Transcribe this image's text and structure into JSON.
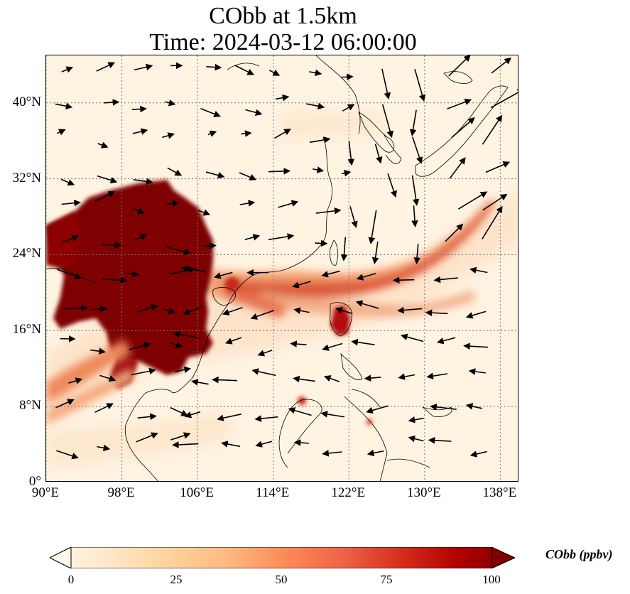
{
  "title": "CObb at 1.5km",
  "subtitle": "Time: 2024-03-12 06:00:00",
  "map": {
    "extent": {
      "lon_min": 90,
      "lon_max": 140,
      "lat_min": 0,
      "lat_max": 45
    },
    "gridlines": "dotted grey",
    "lon_ticks": [
      {
        "value": 90,
        "label": "90°E"
      },
      {
        "value": 98,
        "label": "98°E"
      },
      {
        "value": 106,
        "label": "106°E"
      },
      {
        "value": 114,
        "label": "114°E"
      },
      {
        "value": 122,
        "label": "122°E"
      },
      {
        "value": 130,
        "label": "130°E"
      },
      {
        "value": 138,
        "label": "138°E"
      }
    ],
    "lat_ticks": [
      {
        "value": 0,
        "label": "0°"
      },
      {
        "value": 8,
        "label": "8°N"
      },
      {
        "value": 16,
        "label": "16°N"
      },
      {
        "value": 24,
        "label": "24°N"
      },
      {
        "value": 32,
        "label": "32°N"
      },
      {
        "value": 40,
        "label": "40°N"
      }
    ],
    "plume_regions": [
      {
        "name": "Indochina / Myanmar core",
        "lon": [
          92,
          108
        ],
        "lat": [
          12,
          31
        ],
        "level": 100
      },
      {
        "name": "Transport band east across South China Sea",
        "lon": [
          108,
          136
        ],
        "lat": [
          16,
          30
        ],
        "level": 60
      },
      {
        "name": "Luzon",
        "lon": [
          120,
          123
        ],
        "lat": [
          15,
          18
        ],
        "level": 90
      }
    ],
    "wind_field": "black arrows (horizontal wind vectors)"
  },
  "colorbar": {
    "label": "CObb (ppbv)",
    "colormap": "OrRd",
    "colors": [
      "#fff7ec",
      "#fee8c8",
      "#fdd49e",
      "#fdbb84",
      "#fc8d59",
      "#ef6548",
      "#d7301f",
      "#b30000",
      "#7f0000"
    ],
    "min": 0,
    "max": 100,
    "extend": "both",
    "ticks": [
      {
        "value": 0,
        "label": "0"
      },
      {
        "value": 25,
        "label": "25"
      },
      {
        "value": 50,
        "label": "50"
      },
      {
        "value": 75,
        "label": "75"
      },
      {
        "value": 100,
        "label": "100"
      }
    ]
  }
}
